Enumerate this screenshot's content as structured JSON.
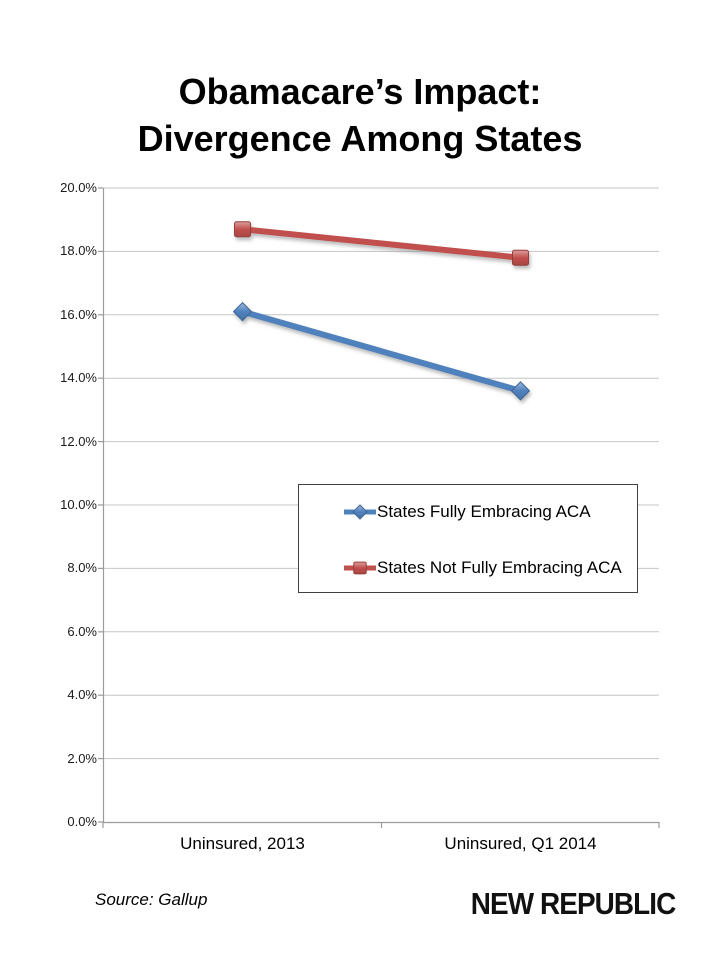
{
  "chart_data": {
    "type": "line",
    "title_lines": [
      "Obamacare’s Impact:",
      "Divergence Among States"
    ],
    "title": "Obamacare’s Impact: Divergence Among States",
    "categories": [
      "Uninsured, 2013",
      "Uninsured, Q1 2014"
    ],
    "series": [
      {
        "name": "States Fully Embracing ACA",
        "marker": "diamond",
        "color": "#4F81BD",
        "values": [
          16.1,
          13.6
        ]
      },
      {
        "name": "States Not Fully Embracing ACA",
        "marker": "square",
        "color": "#C0504D",
        "values": [
          18.7,
          17.8
        ]
      }
    ],
    "xlabel": "",
    "ylabel": "",
    "ylim": [
      0,
      20
    ],
    "ytick_step": 2,
    "ytick_labels": [
      "0.0%",
      "2.0%",
      "4.0%",
      "6.0%",
      "8.0%",
      "10.0%",
      "12.0%",
      "14.0%",
      "16.0%",
      "18.0%",
      "20.0%"
    ],
    "grid": "horizontal",
    "legend_position": "inside-middle-right",
    "gridline_color": "#c6c6c6",
    "axis_color": "#9b9b9b"
  },
  "footer": {
    "source": "Source: Gallup",
    "brand": "NEW REPUBLIC"
  }
}
